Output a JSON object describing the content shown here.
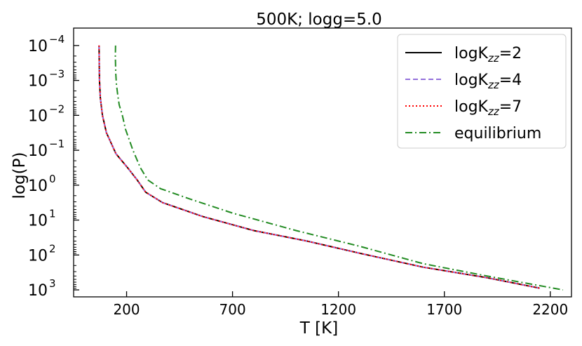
{
  "chart_data": {
    "type": "line",
    "title": "500K; logg=5.0",
    "xlabel": "T [K]",
    "ylabel": "log(P)",
    "xlim": [
      -50,
      2300
    ],
    "ylim_log10": [
      -4.5,
      3.2
    ],
    "y_inverted": true,
    "y_scale": "log",
    "x_ticks": [
      200,
      700,
      1200,
      1700,
      2200
    ],
    "x_tick_labels": [
      "200",
      "700",
      "1200",
      "1700",
      "2200"
    ],
    "y_ticks_exp": [
      -4,
      -3,
      -2,
      -1,
      0,
      1,
      2,
      3
    ],
    "y_tick_labels": [
      {
        "base": "10",
        "exp": "−4"
      },
      {
        "base": "10",
        "exp": "−3"
      },
      {
        "base": "10",
        "exp": "−2"
      },
      {
        "base": "10",
        "exp": "−1"
      },
      {
        "base": "10",
        "exp": "0"
      },
      {
        "base": "10",
        "exp": "1"
      },
      {
        "base": "10",
        "exp": "2"
      },
      {
        "base": "10",
        "exp": "3"
      }
    ],
    "legend_position": "top-right",
    "series": [
      {
        "name": "logK",
        "name_sub": "zz",
        "name_suffix": "=2",
        "color": "#000000",
        "dash": "",
        "points": [
          [
            70,
            -4
          ],
          [
            71,
            -3.4
          ],
          [
            72,
            -3.0
          ],
          [
            76,
            -2.5
          ],
          [
            86,
            -2.0
          ],
          [
            105,
            -1.5
          ],
          [
            150,
            -0.9
          ],
          [
            205,
            -0.5
          ],
          [
            250,
            -0.15
          ],
          [
            290,
            0.2
          ],
          [
            370,
            0.5
          ],
          [
            560,
            0.9
          ],
          [
            800,
            1.3
          ],
          [
            1050,
            1.6
          ],
          [
            1300,
            1.95
          ],
          [
            1600,
            2.35
          ],
          [
            1900,
            2.65
          ],
          [
            2150,
            2.95
          ]
        ]
      },
      {
        "name": "logK",
        "name_sub": "zz",
        "name_suffix": "=4",
        "color": "#9370db",
        "dash": "7,4",
        "points": [
          [
            70,
            -4
          ],
          [
            71,
            -3.4
          ],
          [
            72,
            -3.0
          ],
          [
            76,
            -2.5
          ],
          [
            86,
            -2.0
          ],
          [
            105,
            -1.5
          ],
          [
            150,
            -0.9
          ],
          [
            205,
            -0.5
          ],
          [
            250,
            -0.15
          ],
          [
            290,
            0.2
          ],
          [
            370,
            0.5
          ],
          [
            560,
            0.9
          ],
          [
            800,
            1.3
          ],
          [
            1050,
            1.6
          ],
          [
            1300,
            1.95
          ],
          [
            1600,
            2.35
          ],
          [
            1900,
            2.65
          ],
          [
            2150,
            2.95
          ]
        ]
      },
      {
        "name": "logK",
        "name_sub": "zz",
        "name_suffix": "=7",
        "color": "#ff0000",
        "dash": "2,3",
        "points": [
          [
            70,
            -4
          ],
          [
            71,
            -3.4
          ],
          [
            72,
            -3.0
          ],
          [
            76,
            -2.5
          ],
          [
            86,
            -2.0
          ],
          [
            105,
            -1.5
          ],
          [
            150,
            -0.9
          ],
          [
            205,
            -0.5
          ],
          [
            250,
            -0.15
          ],
          [
            290,
            0.2
          ],
          [
            370,
            0.5
          ],
          [
            560,
            0.9
          ],
          [
            800,
            1.3
          ],
          [
            1050,
            1.6
          ],
          [
            1300,
            1.95
          ],
          [
            1600,
            2.35
          ],
          [
            1900,
            2.65
          ],
          [
            2150,
            2.95
          ]
        ]
      },
      {
        "name": "equilibrium",
        "name_sub": "",
        "name_suffix": "",
        "color": "#228b22",
        "dash": "10,4,2,4",
        "points": [
          [
            148,
            -4
          ],
          [
            147,
            -3.7
          ],
          [
            149,
            -3.2
          ],
          [
            152,
            -2.9
          ],
          [
            158,
            -2.6
          ],
          [
            165,
            -2.3
          ],
          [
            180,
            -2.0
          ],
          [
            195,
            -1.6
          ],
          [
            230,
            -1.0
          ],
          [
            265,
            -0.5
          ],
          [
            300,
            -0.15
          ],
          [
            360,
            0.1
          ],
          [
            500,
            0.4
          ],
          [
            700,
            0.8
          ],
          [
            1000,
            1.3
          ],
          [
            1300,
            1.75
          ],
          [
            1600,
            2.25
          ],
          [
            1900,
            2.6
          ],
          [
            2260,
            3.0
          ]
        ]
      }
    ]
  }
}
